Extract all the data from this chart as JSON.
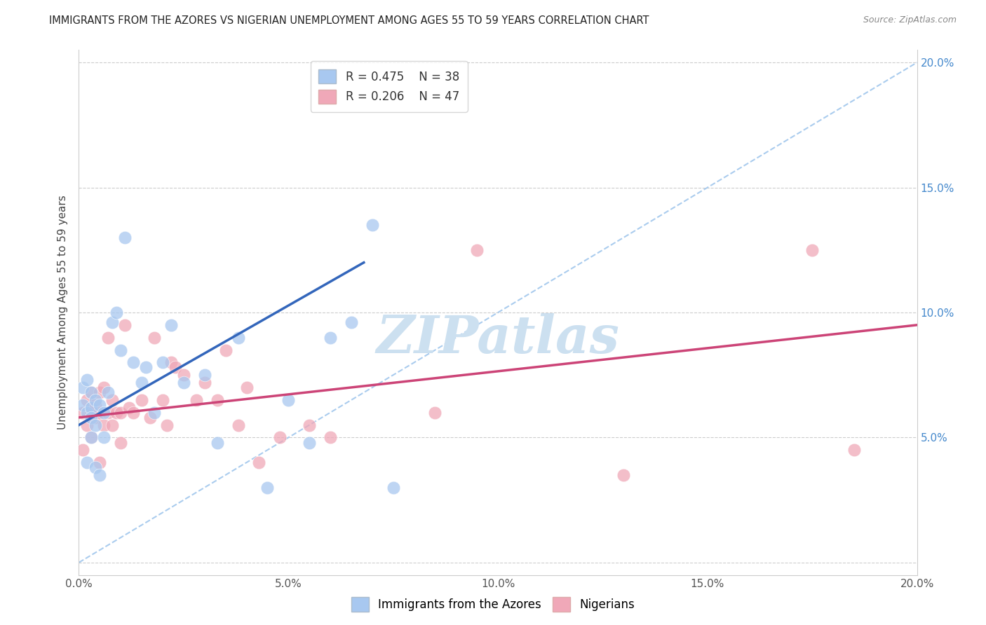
{
  "title": "IMMIGRANTS FROM THE AZORES VS NIGERIAN UNEMPLOYMENT AMONG AGES 55 TO 59 YEARS CORRELATION CHART",
  "source": "Source: ZipAtlas.com",
  "ylabel": "Unemployment Among Ages 55 to 59 years",
  "xlim": [
    0,
    0.2
  ],
  "ylim": [
    -0.005,
    0.205
  ],
  "xticks": [
    0.0,
    0.05,
    0.1,
    0.15,
    0.2
  ],
  "yticks": [
    0.0,
    0.05,
    0.1,
    0.15,
    0.2
  ],
  "xtick_labels": [
    "0.0%",
    "5.0%",
    "10.0%",
    "15.0%",
    "20.0%"
  ],
  "left_ytick_labels": [
    "",
    "",
    "",
    "",
    ""
  ],
  "right_ytick_labels": [
    "",
    "5.0%",
    "10.0%",
    "15.0%",
    "20.0%"
  ],
  "azores_R": 0.475,
  "azores_N": 38,
  "nigerian_R": 0.206,
  "nigerian_N": 47,
  "azores_color": "#a8c8f0",
  "nigerian_color": "#f0a8b8",
  "azores_line_color": "#3366bb",
  "nigerian_line_color": "#cc4477",
  "dashed_line_color": "#aaccee",
  "watermark_color": "#cce0f0",
  "legend_azores_label": "Immigrants from the Azores",
  "legend_nigerian_label": "Nigerians",
  "azores_scatter_x": [
    0.001,
    0.001,
    0.002,
    0.002,
    0.002,
    0.003,
    0.003,
    0.003,
    0.003,
    0.004,
    0.004,
    0.004,
    0.005,
    0.005,
    0.006,
    0.006,
    0.007,
    0.008,
    0.009,
    0.01,
    0.011,
    0.013,
    0.015,
    0.016,
    0.018,
    0.02,
    0.022,
    0.025,
    0.03,
    0.033,
    0.038,
    0.045,
    0.05,
    0.055,
    0.06,
    0.065,
    0.07,
    0.075
  ],
  "azores_scatter_y": [
    0.07,
    0.063,
    0.073,
    0.06,
    0.04,
    0.068,
    0.062,
    0.058,
    0.05,
    0.065,
    0.055,
    0.038,
    0.063,
    0.035,
    0.06,
    0.05,
    0.068,
    0.096,
    0.1,
    0.085,
    0.13,
    0.08,
    0.072,
    0.078,
    0.06,
    0.08,
    0.095,
    0.072,
    0.075,
    0.048,
    0.09,
    0.03,
    0.065,
    0.048,
    0.09,
    0.096,
    0.135,
    0.03
  ],
  "nigerian_scatter_x": [
    0.001,
    0.001,
    0.002,
    0.002,
    0.003,
    0.003,
    0.003,
    0.004,
    0.004,
    0.005,
    0.005,
    0.005,
    0.006,
    0.006,
    0.007,
    0.007,
    0.008,
    0.008,
    0.009,
    0.01,
    0.01,
    0.011,
    0.012,
    0.013,
    0.015,
    0.017,
    0.018,
    0.02,
    0.021,
    0.022,
    0.023,
    0.025,
    0.028,
    0.03,
    0.033,
    0.035,
    0.038,
    0.04,
    0.043,
    0.048,
    0.055,
    0.06,
    0.085,
    0.095,
    0.13,
    0.175,
    0.185
  ],
  "nigerian_scatter_y": [
    0.045,
    0.06,
    0.065,
    0.055,
    0.068,
    0.06,
    0.05,
    0.063,
    0.058,
    0.068,
    0.06,
    0.04,
    0.055,
    0.07,
    0.06,
    0.09,
    0.065,
    0.055,
    0.06,
    0.048,
    0.06,
    0.095,
    0.062,
    0.06,
    0.065,
    0.058,
    0.09,
    0.065,
    0.055,
    0.08,
    0.078,
    0.075,
    0.065,
    0.072,
    0.065,
    0.085,
    0.055,
    0.07,
    0.04,
    0.05,
    0.055,
    0.05,
    0.06,
    0.125,
    0.035,
    0.125,
    0.045
  ],
  "azores_trendline_x": [
    0.0,
    0.068
  ],
  "azores_trendline_y": [
    0.055,
    0.12
  ],
  "nigerian_trendline_x": [
    0.0,
    0.2
  ],
  "nigerian_trendline_y": [
    0.058,
    0.095
  ],
  "dashed_line_x": [
    0.0,
    0.2
  ],
  "dashed_line_y": [
    0.0,
    0.2
  ]
}
